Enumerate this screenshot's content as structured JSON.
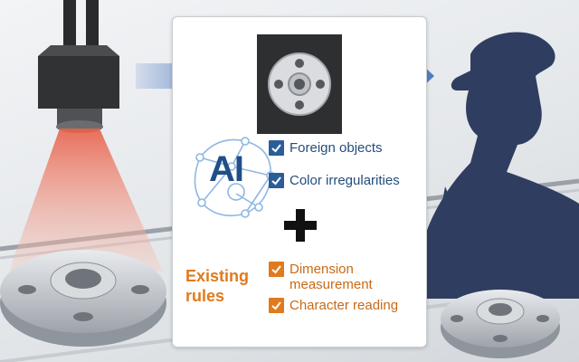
{
  "ai_section": {
    "logo_text": "AI",
    "checks": [
      "Foreign objects",
      "Color irregularities"
    ]
  },
  "combine_symbol": "plus-icon",
  "rules_section": {
    "title_line1": "Existing",
    "title_line2": "rules",
    "checks": [
      "Dimension measurement",
      "Character reading"
    ]
  },
  "colors": {
    "ai_blue": "#2b5d99",
    "rules_orange": "#e07a1d",
    "arrow_blue": "#4a78c2",
    "camera_glow": "#f3a08a",
    "inspector_silhouette": "#2f3e60"
  }
}
